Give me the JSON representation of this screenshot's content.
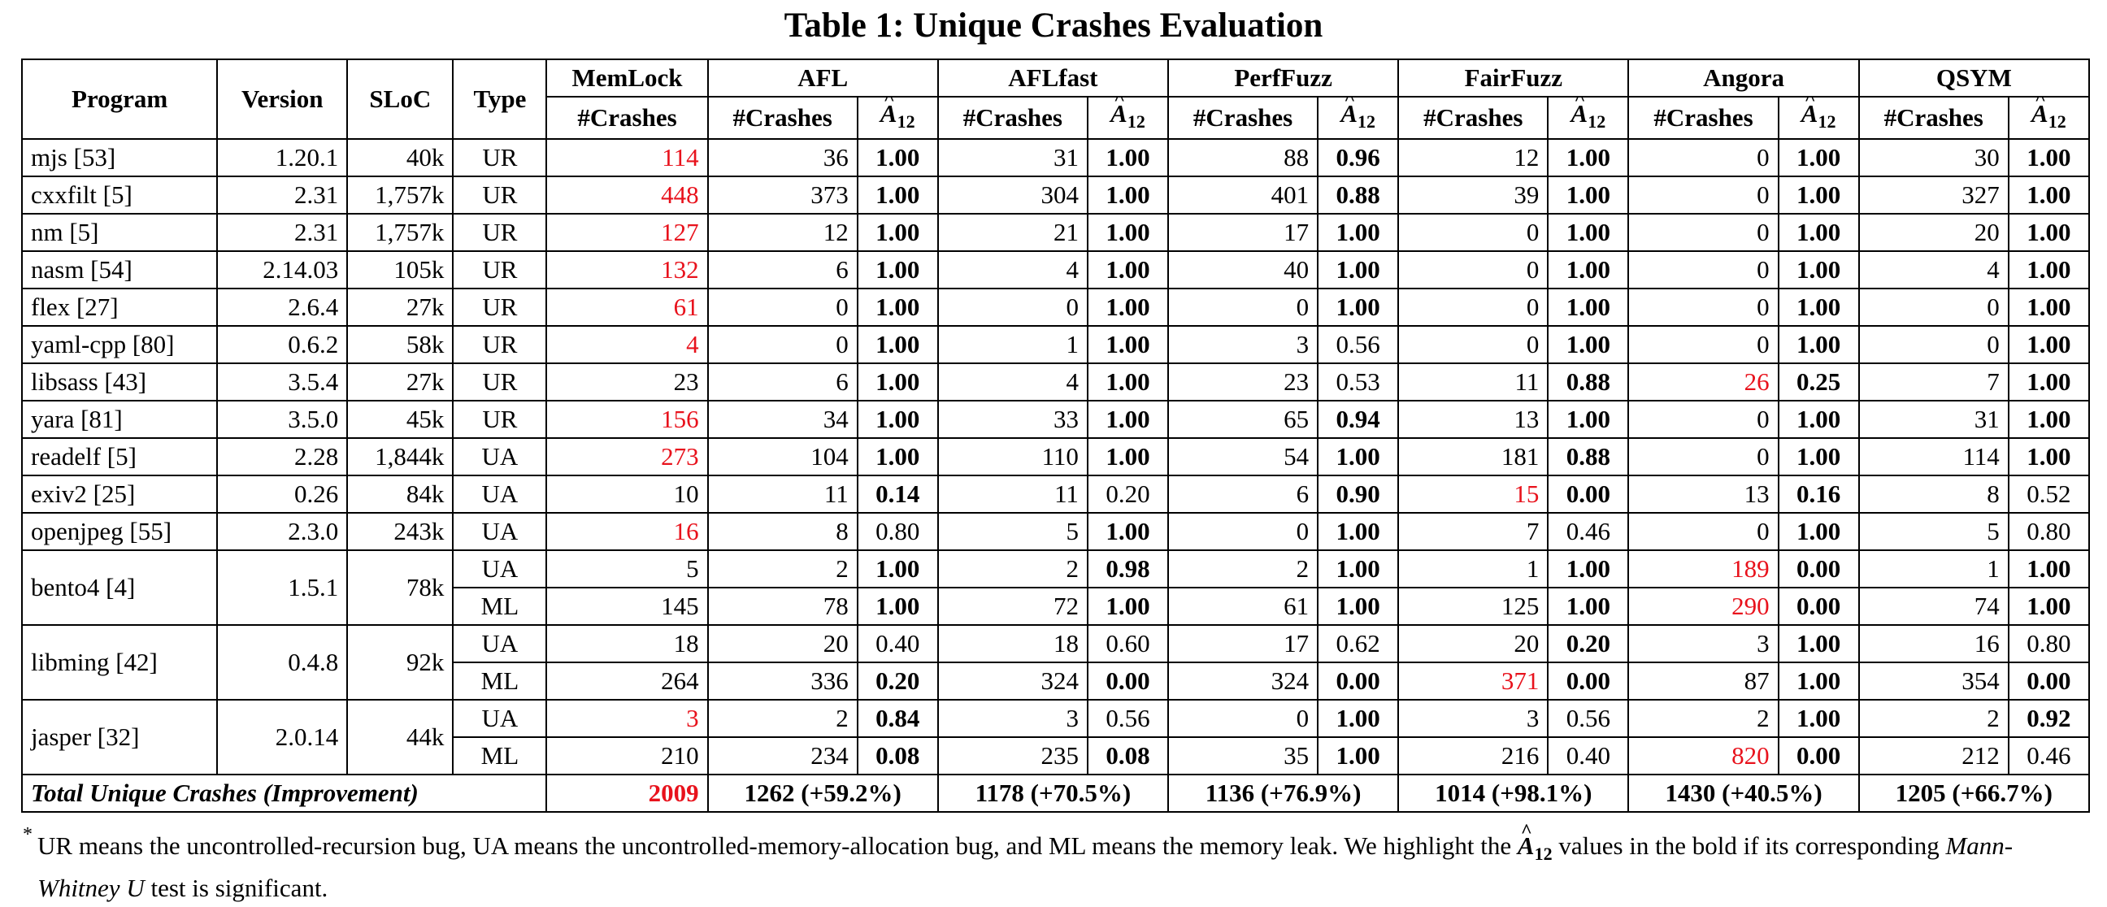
{
  "title": "Table 1: Unique Crashes Evaluation",
  "headers": {
    "program": "Program",
    "version": "Version",
    "sloc": "SLoC",
    "type": "Type",
    "memlock": "MemLock",
    "tools": [
      "AFL",
      "AFLfast",
      "PerfFuzz",
      "FairFuzz",
      "Angora",
      "QSYM"
    ],
    "crashes": "#Crashes",
    "a12_letter": "A",
    "a12_sub": "12"
  },
  "rows": [
    {
      "program": "mjs [53]",
      "version": "1.20.1",
      "sloc": "40k",
      "type": "UR",
      "memlock": "114",
      "memlock_red": true,
      "tools": [
        [
          "36",
          "1.00",
          true
        ],
        [
          "31",
          "1.00",
          true
        ],
        [
          "88",
          "0.96",
          true
        ],
        [
          "12",
          "1.00",
          true
        ],
        [
          "0",
          "1.00",
          true
        ],
        [
          "30",
          "1.00",
          true
        ]
      ]
    },
    {
      "program": "cxxfilt [5]",
      "version": "2.31",
      "sloc": "1,757k",
      "type": "UR",
      "memlock": "448",
      "memlock_red": true,
      "tools": [
        [
          "373",
          "1.00",
          true
        ],
        [
          "304",
          "1.00",
          true
        ],
        [
          "401",
          "0.88",
          true
        ],
        [
          "39",
          "1.00",
          true
        ],
        [
          "0",
          "1.00",
          true
        ],
        [
          "327",
          "1.00",
          true
        ]
      ]
    },
    {
      "program": "nm [5]",
      "version": "2.31",
      "sloc": "1,757k",
      "type": "UR",
      "memlock": "127",
      "memlock_red": true,
      "tools": [
        [
          "12",
          "1.00",
          true
        ],
        [
          "21",
          "1.00",
          true
        ],
        [
          "17",
          "1.00",
          true
        ],
        [
          "0",
          "1.00",
          true
        ],
        [
          "0",
          "1.00",
          true
        ],
        [
          "20",
          "1.00",
          true
        ]
      ]
    },
    {
      "program": "nasm [54]",
      "version": "2.14.03",
      "sloc": "105k",
      "type": "UR",
      "memlock": "132",
      "memlock_red": true,
      "tools": [
        [
          "6",
          "1.00",
          true
        ],
        [
          "4",
          "1.00",
          true
        ],
        [
          "40",
          "1.00",
          true
        ],
        [
          "0",
          "1.00",
          true
        ],
        [
          "0",
          "1.00",
          true
        ],
        [
          "4",
          "1.00",
          true
        ]
      ]
    },
    {
      "program": "flex [27]",
      "version": "2.6.4",
      "sloc": "27k",
      "type": "UR",
      "memlock": "61",
      "memlock_red": true,
      "tools": [
        [
          "0",
          "1.00",
          true
        ],
        [
          "0",
          "1.00",
          true
        ],
        [
          "0",
          "1.00",
          true
        ],
        [
          "0",
          "1.00",
          true
        ],
        [
          "0",
          "1.00",
          true
        ],
        [
          "0",
          "1.00",
          true
        ]
      ]
    },
    {
      "program": "yaml-cpp [80]",
      "version": "0.6.2",
      "sloc": "58k",
      "type": "UR",
      "memlock": "4",
      "memlock_red": true,
      "tools": [
        [
          "0",
          "1.00",
          true
        ],
        [
          "1",
          "1.00",
          true
        ],
        [
          "3",
          "0.56",
          false
        ],
        [
          "0",
          "1.00",
          true
        ],
        [
          "0",
          "1.00",
          true
        ],
        [
          "0",
          "1.00",
          true
        ]
      ]
    },
    {
      "program": "libsass [43]",
      "version": "3.5.4",
      "sloc": "27k",
      "type": "UR",
      "memlock": "23",
      "memlock_red": false,
      "tools": [
        [
          "6",
          "1.00",
          true
        ],
        [
          "4",
          "1.00",
          true
        ],
        [
          "23",
          "0.53",
          false
        ],
        [
          "11",
          "0.88",
          true
        ],
        [
          "26",
          "0.25",
          true,
          true
        ],
        [
          "7",
          "1.00",
          true
        ]
      ]
    },
    {
      "program": "yara [81]",
      "version": "3.5.0",
      "sloc": "45k",
      "type": "UR",
      "memlock": "156",
      "memlock_red": true,
      "tools": [
        [
          "34",
          "1.00",
          true
        ],
        [
          "33",
          "1.00",
          true
        ],
        [
          "65",
          "0.94",
          true
        ],
        [
          "13",
          "1.00",
          true
        ],
        [
          "0",
          "1.00",
          true
        ],
        [
          "31",
          "1.00",
          true
        ]
      ]
    },
    {
      "program": "readelf [5]",
      "version": "2.28",
      "sloc": "1,844k",
      "type": "UA",
      "memlock": "273",
      "memlock_red": true,
      "tools": [
        [
          "104",
          "1.00",
          true
        ],
        [
          "110",
          "1.00",
          true
        ],
        [
          "54",
          "1.00",
          true
        ],
        [
          "181",
          "0.88",
          true
        ],
        [
          "0",
          "1.00",
          true
        ],
        [
          "114",
          "1.00",
          true
        ]
      ]
    },
    {
      "program": "exiv2 [25]",
      "version": "0.26",
      "sloc": "84k",
      "type": "UA",
      "memlock": "10",
      "memlock_red": false,
      "tools": [
        [
          "11",
          "0.14",
          true
        ],
        [
          "11",
          "0.20",
          false
        ],
        [
          "6",
          "0.90",
          true
        ],
        [
          "15",
          "0.00",
          true,
          true
        ],
        [
          "13",
          "0.16",
          true
        ],
        [
          "8",
          "0.52",
          false
        ]
      ]
    },
    {
      "program": "openjpeg [55]",
      "version": "2.3.0",
      "sloc": "243k",
      "type": "UA",
      "memlock": "16",
      "memlock_red": true,
      "tools": [
        [
          "8",
          "0.80",
          false
        ],
        [
          "5",
          "1.00",
          true
        ],
        [
          "0",
          "1.00",
          true
        ],
        [
          "7",
          "0.46",
          false
        ],
        [
          "0",
          "1.00",
          true
        ],
        [
          "5",
          "0.80",
          false
        ]
      ]
    },
    {
      "program": "bento4 [4]",
      "version": "1.5.1",
      "sloc": "78k",
      "type": "UA",
      "memlock": "5",
      "memlock_red": false,
      "span": 2,
      "tools": [
        [
          "2",
          "1.00",
          true
        ],
        [
          "2",
          "0.98",
          true
        ],
        [
          "2",
          "1.00",
          true
        ],
        [
          "1",
          "1.00",
          true
        ],
        [
          "189",
          "0.00",
          true,
          true
        ],
        [
          "1",
          "1.00",
          true
        ]
      ]
    },
    {
      "type": "ML",
      "memlock": "145",
      "memlock_red": false,
      "tools": [
        [
          "78",
          "1.00",
          true
        ],
        [
          "72",
          "1.00",
          true
        ],
        [
          "61",
          "1.00",
          true
        ],
        [
          "125",
          "1.00",
          true
        ],
        [
          "290",
          "0.00",
          true,
          true
        ],
        [
          "74",
          "1.00",
          true
        ]
      ]
    },
    {
      "program": "libming [42]",
      "version": "0.4.8",
      "sloc": "92k",
      "type": "UA",
      "memlock": "18",
      "memlock_red": false,
      "span": 2,
      "tools": [
        [
          "20",
          "0.40",
          false
        ],
        [
          "18",
          "0.60",
          false
        ],
        [
          "17",
          "0.62",
          false
        ],
        [
          "20",
          "0.20",
          true
        ],
        [
          "3",
          "1.00",
          true
        ],
        [
          "16",
          "0.80",
          false
        ]
      ]
    },
    {
      "type": "ML",
      "memlock": "264",
      "memlock_red": false,
      "tools": [
        [
          "336",
          "0.20",
          true
        ],
        [
          "324",
          "0.00",
          true
        ],
        [
          "324",
          "0.00",
          true
        ],
        [
          "371",
          "0.00",
          true,
          true
        ],
        [
          "87",
          "1.00",
          true
        ],
        [
          "354",
          "0.00",
          true
        ]
      ]
    },
    {
      "program": "jasper [32]",
      "version": "2.0.14",
      "sloc": "44k",
      "type": "UA",
      "memlock": "3",
      "memlock_red": true,
      "span": 2,
      "tools": [
        [
          "2",
          "0.84",
          true
        ],
        [
          "3",
          "0.56",
          false
        ],
        [
          "0",
          "1.00",
          true
        ],
        [
          "3",
          "0.56",
          false
        ],
        [
          "2",
          "1.00",
          true
        ],
        [
          "2",
          "0.92",
          true
        ]
      ]
    },
    {
      "type": "ML",
      "memlock": "210",
      "memlock_red": false,
      "tools": [
        [
          "234",
          "0.08",
          true
        ],
        [
          "235",
          "0.08",
          true
        ],
        [
          "35",
          "1.00",
          true
        ],
        [
          "216",
          "0.40",
          false
        ],
        [
          "820",
          "0.00",
          true,
          true
        ],
        [
          "212",
          "0.46",
          false
        ]
      ]
    }
  ],
  "total": {
    "label": "Total Unique Crashes (Improvement)",
    "memlock": "2009",
    "tools": [
      "1262 (+59.2%)",
      "1178 (+70.5%)",
      "1136 (+76.9%)",
      "1014 (+98.1%)",
      "1430 (+40.5%)",
      "1205 (+66.7%)"
    ]
  },
  "note": {
    "star": "*",
    "part1": "UR means the uncontrolled-recursion bug, UA means the uncontrolled-memory-allocation bug, and ML means the memory leak. We highlight the ",
    "part2": " values in the bold if its corresponding ",
    "test_name": "Mann-Whitney U",
    "part3": " test is significant."
  },
  "colors": {
    "highlight": "#e8121c",
    "text": "#000000"
  }
}
